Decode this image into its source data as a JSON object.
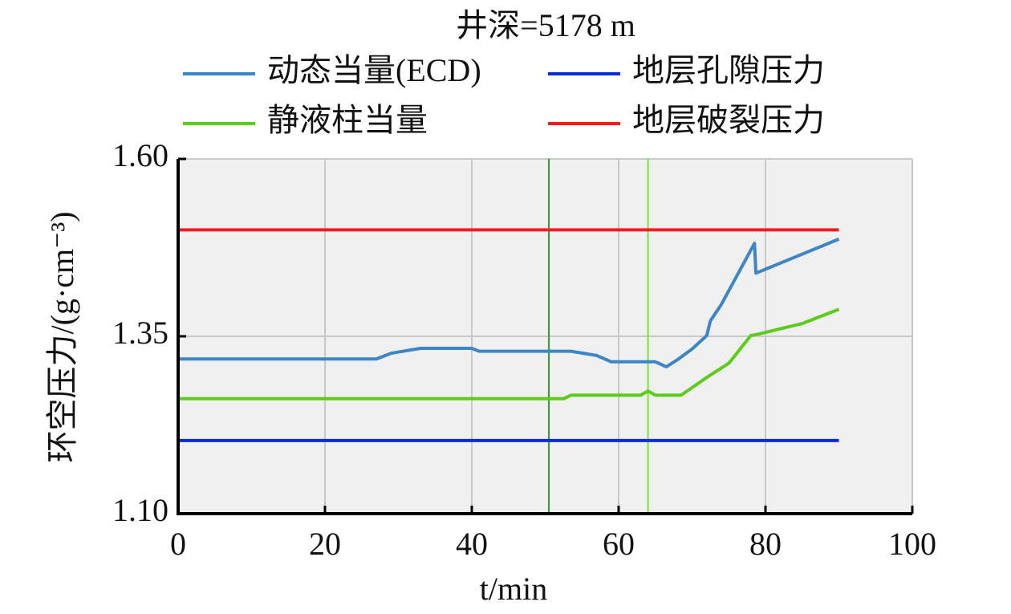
{
  "chart_data": {
    "type": "line",
    "title": "井深=5178 m",
    "xlabel": "t/min",
    "ylabel": "环空压力/(g·cm⁻³)",
    "xlim": [
      0,
      100
    ],
    "xticks": [
      0,
      20,
      40,
      60,
      80,
      100
    ],
    "ylim": [
      1.1,
      1.6
    ],
    "yticks": [
      {
        "value": 1.1,
        "label": "1.10"
      },
      1.35,
      {
        "value": 1.6,
        "label": "1.60"
      }
    ],
    "grid": true,
    "series": [
      {
        "name": "动态当量(ECD)",
        "color": "#3d85c6",
        "x": [
          0,
          27,
          29,
          33,
          40,
          41,
          53.5,
          57,
          59,
          65,
          66.5,
          68,
          70,
          72,
          72.5,
          74,
          78.5,
          78.7,
          90
        ],
        "values": [
          1.318,
          1.318,
          1.326,
          1.333,
          1.333,
          1.329,
          1.329,
          1.323,
          1.314,
          1.314,
          1.307,
          1.317,
          1.332,
          1.351,
          1.372,
          1.395,
          1.481,
          1.439,
          1.487
        ]
      },
      {
        "name": "地层孔隙压力",
        "color": "#0a2bd6",
        "x": [
          0,
          90
        ],
        "values": [
          1.203,
          1.203
        ]
      },
      {
        "name": "静液柱当量",
        "color": "#5ccc1a",
        "x": [
          0,
          52.5,
          53.5,
          63,
          64,
          65,
          68.5,
          72,
          75,
          78,
          79,
          85,
          90
        ],
        "values": [
          1.262,
          1.262,
          1.267,
          1.267,
          1.273,
          1.267,
          1.267,
          1.292,
          1.312,
          1.351,
          1.353,
          1.368,
          1.388
        ]
      },
      {
        "name": "地层破裂压力",
        "color": "#f21c1c",
        "x": [
          0,
          90
        ],
        "values": [
          1.5,
          1.5
        ]
      }
    ],
    "vlines": [
      {
        "x": 50.5,
        "color": "#2a9a2a"
      },
      {
        "x": 64,
        "color": "#7ee03a"
      }
    ]
  }
}
